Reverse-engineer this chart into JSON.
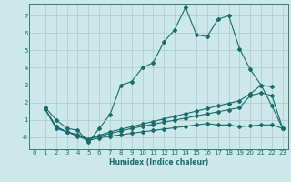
{
  "xlabel": "Humidex (Indice chaleur)",
  "background_color": "#cce8e8",
  "grid_color": "#aacccc",
  "line_color": "#1a6b6b",
  "xlim": [
    -0.5,
    23.5
  ],
  "ylim": [
    -0.7,
    7.7
  ],
  "xticks": [
    0,
    1,
    2,
    3,
    4,
    5,
    6,
    7,
    8,
    9,
    10,
    11,
    12,
    13,
    14,
    15,
    16,
    17,
    18,
    19,
    20,
    21,
    22,
    23
  ],
  "yticks": [
    0,
    1,
    2,
    3,
    4,
    5,
    6,
    7
  ],
  "ytick_labels": [
    "-0",
    "1",
    "2",
    "3",
    "4",
    "5",
    "6",
    "7"
  ],
  "line1_x": [
    1,
    2,
    3,
    4,
    5,
    6,
    7,
    8,
    9,
    10,
    11,
    12,
    13,
    14,
    15,
    16,
    17,
    18,
    19,
    20,
    21,
    22
  ],
  "line1_y": [
    1.7,
    1.0,
    0.5,
    0.4,
    -0.3,
    0.5,
    1.3,
    3.0,
    3.2,
    4.0,
    4.3,
    5.5,
    6.2,
    7.5,
    5.9,
    5.8,
    6.8,
    7.0,
    5.1,
    3.9,
    3.0,
    2.9
  ],
  "line2_x": [
    1,
    2,
    3,
    4,
    5,
    6,
    7,
    8,
    9,
    10,
    11,
    12,
    13,
    14,
    15,
    16,
    17,
    18,
    19,
    20,
    21,
    22,
    23
  ],
  "line2_y": [
    1.6,
    0.6,
    0.3,
    0.15,
    -0.1,
    0.1,
    0.3,
    0.45,
    0.6,
    0.75,
    0.9,
    1.05,
    1.2,
    1.35,
    1.5,
    1.65,
    1.8,
    1.95,
    2.1,
    2.5,
    3.0,
    1.8,
    0.5
  ],
  "line3_x": [
    1,
    2,
    3,
    4,
    5,
    6,
    7,
    8,
    9,
    10,
    11,
    12,
    13,
    14,
    15,
    16,
    17,
    18,
    19,
    20,
    21,
    22,
    23
  ],
  "line3_y": [
    1.6,
    0.6,
    0.3,
    0.1,
    -0.15,
    0.05,
    0.2,
    0.35,
    0.5,
    0.62,
    0.74,
    0.86,
    0.98,
    1.1,
    1.22,
    1.34,
    1.46,
    1.58,
    1.7,
    2.4,
    2.55,
    2.4,
    0.5
  ],
  "line4_x": [
    1,
    2,
    3,
    4,
    5,
    6,
    7,
    8,
    9,
    10,
    11,
    12,
    13,
    14,
    15,
    16,
    17,
    18,
    19,
    20,
    21,
    22,
    23
  ],
  "line4_y": [
    1.6,
    0.5,
    0.3,
    0.05,
    -0.2,
    -0.05,
    0.05,
    0.13,
    0.22,
    0.3,
    0.38,
    0.46,
    0.54,
    0.62,
    0.7,
    0.78,
    0.7,
    0.7,
    0.6,
    0.65,
    0.7,
    0.7,
    0.5
  ]
}
